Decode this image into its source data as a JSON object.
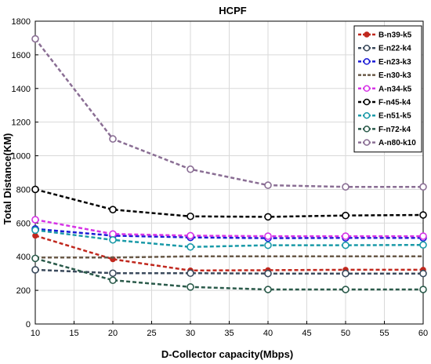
{
  "chart_data": {
    "type": "line",
    "title": "HCPF",
    "xlabel": "D-Collector capacity(Mbps)",
    "ylabel": "Total Distance(KM)",
    "xlim": [
      10,
      60
    ],
    "ylim": [
      0,
      1800
    ],
    "xticks": [
      10,
      15,
      20,
      25,
      30,
      35,
      40,
      45,
      50,
      55,
      60
    ],
    "yticks": [
      0,
      200,
      400,
      600,
      800,
      1000,
      1200,
      1400,
      1600,
      1800
    ],
    "grid": true,
    "legend_position": "top-right",
    "x": [
      10,
      20,
      30,
      40,
      50,
      60
    ],
    "series": [
      {
        "name": "B-n39-k5",
        "color": "#c0281e",
        "marker": "dot",
        "values": [
          525,
          385,
          318,
          320,
          322,
          322
        ]
      },
      {
        "name": "E-n22-k4",
        "color": "#3b4a5c",
        "marker": "circle",
        "values": [
          322,
          302,
          302,
          300,
          300,
          300
        ]
      },
      {
        "name": "E-n23-k3",
        "color": "#1a1ad6",
        "marker": "circle",
        "values": [
          565,
          525,
          515,
          510,
          512,
          512
        ]
      },
      {
        "name": "E-n30-k3",
        "color": "#6a5a48",
        "marker": "none",
        "values": [
          395,
          395,
          402,
          402,
          402,
          402
        ]
      },
      {
        "name": "A-n34-k5",
        "color": "#d633e6",
        "marker": "circle",
        "values": [
          620,
          535,
          525,
          522,
          522,
          522
        ]
      },
      {
        "name": "F-n45-k4",
        "color": "#000000",
        "marker": "circle",
        "values": [
          800,
          680,
          640,
          637,
          645,
          648
        ]
      },
      {
        "name": "E-n51-k5",
        "color": "#1a9aa8",
        "marker": "circle",
        "values": [
          558,
          500,
          458,
          468,
          468,
          470
        ]
      },
      {
        "name": "F-n72-k4",
        "color": "#2a5a4a",
        "marker": "circle",
        "values": [
          390,
          260,
          220,
          205,
          205,
          205
        ]
      },
      {
        "name": "A-n80-k10",
        "color": "#8a6e94",
        "marker": "circle",
        "values": [
          1695,
          1100,
          920,
          825,
          815,
          815
        ]
      }
    ]
  }
}
